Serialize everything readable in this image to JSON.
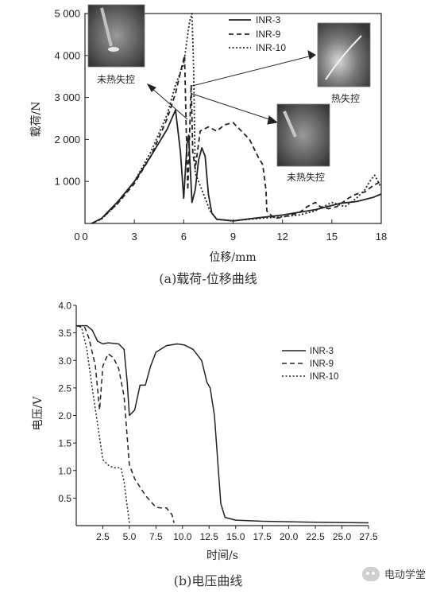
{
  "chart_data": [
    {
      "type": "line",
      "xlabel": "位移/mm",
      "ylabel": "载荷/N",
      "xlim": [
        0,
        18
      ],
      "ylim": [
        0,
        5000
      ],
      "xticks": [
        "0",
        "3",
        "6",
        "9",
        "12",
        "15",
        "18"
      ],
      "yticks": [
        "1 000",
        "2 000",
        "3 000",
        "4 000",
        "5 000"
      ],
      "legend_position": "top-right",
      "grid": false,
      "series": [
        {
          "name": "INR-3",
          "style": "solid",
          "points": [
            [
              0.4,
              0
            ],
            [
              1,
              120
            ],
            [
              2,
              520
            ],
            [
              3,
              1000
            ],
            [
              4,
              1600
            ],
            [
              5,
              2250
            ],
            [
              5.5,
              2700
            ],
            [
              5.8,
              1700
            ],
            [
              6.0,
              600
            ],
            [
              6.2,
              1900
            ],
            [
              6.3,
              2100
            ],
            [
              6.5,
              500
            ],
            [
              6.7,
              800
            ],
            [
              6.9,
              1500
            ],
            [
              7.1,
              1800
            ],
            [
              7.3,
              1600
            ],
            [
              7.5,
              700
            ],
            [
              7.7,
              250
            ],
            [
              8.0,
              100
            ],
            [
              9.0,
              60
            ],
            [
              10,
              110
            ],
            [
              12,
              200
            ],
            [
              14,
              330
            ],
            [
              15.5,
              480
            ],
            [
              16.5,
              520
            ],
            [
              17.5,
              620
            ],
            [
              18,
              700
            ]
          ]
        },
        {
          "name": "INR-9",
          "style": "dashed",
          "points": [
            [
              0.4,
              0
            ],
            [
              1,
              110
            ],
            [
              2,
              480
            ],
            [
              3,
              950
            ],
            [
              4,
              1600
            ],
            [
              5,
              2500
            ],
            [
              5.5,
              3100
            ],
            [
              5.8,
              3600
            ],
            [
              6.05,
              4000
            ],
            [
              6.15,
              2300
            ],
            [
              6.25,
              800
            ],
            [
              6.45,
              3300
            ],
            [
              6.55,
              1700
            ],
            [
              6.7,
              1300
            ],
            [
              7.0,
              2200
            ],
            [
              7.5,
              2300
            ],
            [
              8.0,
              2200
            ],
            [
              8.5,
              2350
            ],
            [
              9.0,
              2400
            ],
            [
              9.5,
              2200
            ],
            [
              10.0,
              2000
            ],
            [
              10.5,
              1600
            ],
            [
              10.8,
              1400
            ],
            [
              11.0,
              800
            ],
            [
              11.05,
              300
            ],
            [
              11.5,
              120
            ],
            [
              12.0,
              150
            ],
            [
              12.5,
              200
            ],
            [
              13.0,
              250
            ],
            [
              13.5,
              400
            ],
            [
              14.0,
              500
            ],
            [
              14.3,
              400
            ],
            [
              14.8,
              350
            ],
            [
              15.3,
              400
            ],
            [
              16.0,
              600
            ],
            [
              16.5,
              700
            ],
            [
              17.0,
              750
            ],
            [
              17.5,
              900
            ],
            [
              18,
              1000
            ]
          ]
        },
        {
          "name": "INR-10",
          "style": "dotted",
          "points": [
            [
              0.4,
              0
            ],
            [
              1,
              100
            ],
            [
              2,
              480
            ],
            [
              3,
              1000
            ],
            [
              4,
              1700
            ],
            [
              5,
              2600
            ],
            [
              5.5,
              3300
            ],
            [
              6.0,
              3800
            ],
            [
              6.35,
              4800
            ],
            [
              6.5,
              5000
            ],
            [
              6.6,
              3700
            ],
            [
              6.7,
              1200
            ],
            [
              7.0,
              900
            ],
            [
              7.3,
              600
            ],
            [
              7.6,
              300
            ],
            [
              8.0,
              100
            ],
            [
              9.0,
              60
            ],
            [
              10,
              100
            ],
            [
              11,
              130
            ],
            [
              12,
              160
            ],
            [
              13,
              200
            ],
            [
              14,
              300
            ],
            [
              15,
              500
            ],
            [
              15.8,
              400
            ],
            [
              16.5,
              600
            ],
            [
              17.0,
              800
            ],
            [
              17.3,
              1000
            ],
            [
              17.6,
              1150
            ],
            [
              18,
              850
            ]
          ]
        }
      ]
    },
    {
      "type": "line",
      "xlabel": "时间/s",
      "ylabel": "电压/V",
      "xlim": [
        0,
        27.5
      ],
      "ylim": [
        0,
        4.0
      ],
      "xticks": [
        "2.5",
        "5.0",
        "7.5",
        "10.0",
        "12.5",
        "15.0",
        "17.5",
        "20.0",
        "22.5",
        "25.0",
        "27.5"
      ],
      "yticks": [
        "0.5",
        "1.0",
        "1.5",
        "2.0",
        "2.5",
        "3.0",
        "3.5",
        "4.0"
      ],
      "legend_position": "top-right",
      "grid": false,
      "series": [
        {
          "name": "INR-3",
          "style": "solid",
          "points": [
            [
              0,
              3.63
            ],
            [
              1,
              3.63
            ],
            [
              1.5,
              3.55
            ],
            [
              2,
              3.35
            ],
            [
              2.5,
              3.3
            ],
            [
              3,
              3.32
            ],
            [
              4.0,
              3.3
            ],
            [
              4.5,
              3.2
            ],
            [
              4.8,
              2.6
            ],
            [
              5.0,
              2.0
            ],
            [
              5.5,
              2.1
            ],
            [
              6.0,
              2.55
            ],
            [
              6.5,
              2.55
            ],
            [
              7.0,
              2.9
            ],
            [
              7.5,
              3.15
            ],
            [
              8.5,
              3.27
            ],
            [
              9.5,
              3.3
            ],
            [
              10.2,
              3.28
            ],
            [
              11,
              3.2
            ],
            [
              11.8,
              3.0
            ],
            [
              12.3,
              2.6
            ],
            [
              12.6,
              2.5
            ],
            [
              13.0,
              2.0
            ],
            [
              13.3,
              1.2
            ],
            [
              13.6,
              0.4
            ],
            [
              14.0,
              0.15
            ],
            [
              15.0,
              0.1
            ],
            [
              17.5,
              0.08
            ],
            [
              22.5,
              0.06
            ],
            [
              27.5,
              0.05
            ]
          ]
        },
        {
          "name": "INR-9",
          "style": "dashed",
          "points": [
            [
              0,
              3.63
            ],
            [
              0.8,
              3.6
            ],
            [
              1.2,
              3.4
            ],
            [
              1.8,
              2.9
            ],
            [
              2.2,
              2.1
            ],
            [
              2.5,
              2.9
            ],
            [
              3.0,
              3.12
            ],
            [
              3.5,
              3.05
            ],
            [
              4.0,
              2.85
            ],
            [
              4.5,
              2.35
            ],
            [
              5.0,
              1.1
            ],
            [
              5.5,
              0.85
            ],
            [
              6.5,
              0.55
            ],
            [
              7.5,
              0.33
            ],
            [
              8.0,
              0.32
            ],
            [
              8.5,
              0.32
            ],
            [
              9.0,
              0.2
            ],
            [
              9.2,
              0.05
            ]
          ]
        },
        {
          "name": "INR-10",
          "style": "dotted",
          "points": [
            [
              0,
              3.63
            ],
            [
              0.5,
              3.6
            ],
            [
              1.0,
              3.2
            ],
            [
              1.5,
              2.5
            ],
            [
              2.0,
              1.85
            ],
            [
              2.5,
              1.2
            ],
            [
              3.0,
              1.1
            ],
            [
              3.5,
              1.05
            ],
            [
              4.2,
              1.05
            ],
            [
              4.5,
              0.8
            ],
            [
              4.8,
              0.35
            ],
            [
              5.0,
              0.05
            ]
          ]
        }
      ]
    }
  ],
  "annotations": {
    "photo1": "未热失控",
    "photo2": "热失控",
    "photo3": "未热失控"
  },
  "captions": {
    "a": "(a)载荷-位移曲线",
    "b": "(b)电压曲线"
  },
  "watermark": "电动学堂"
}
